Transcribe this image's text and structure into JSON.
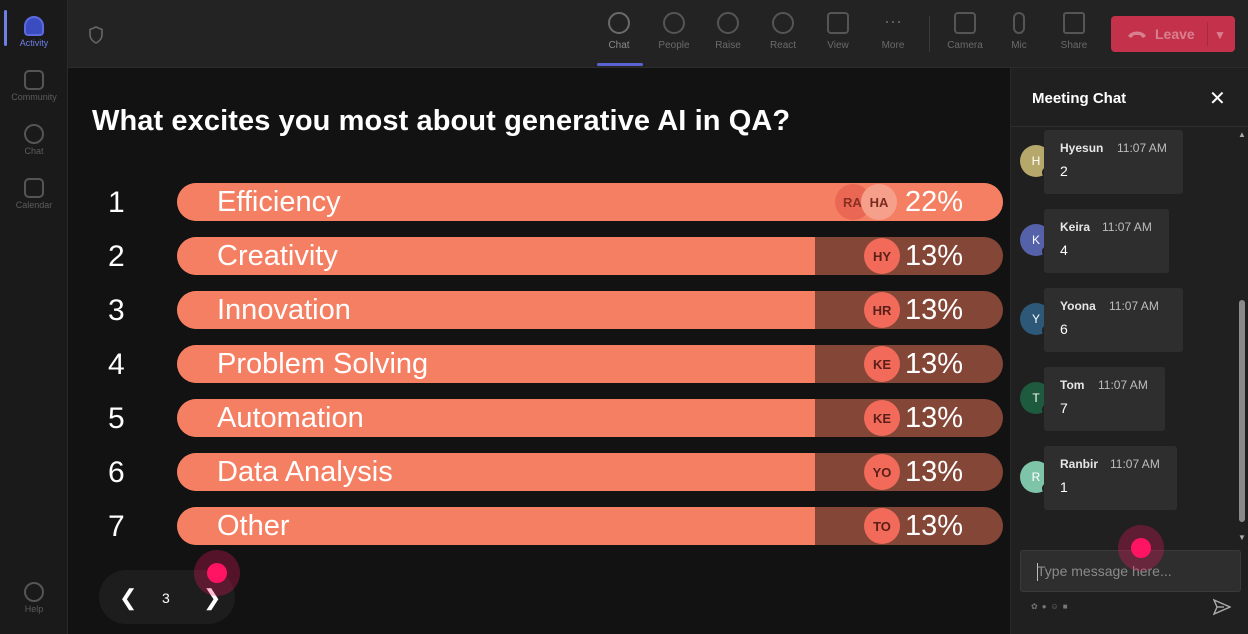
{
  "rail": {
    "items": [
      {
        "label": "Activity"
      },
      {
        "label": "Community"
      },
      {
        "label": "Chat"
      },
      {
        "label": "Calendar"
      }
    ],
    "help_label": "Help"
  },
  "toolbar": {
    "buttons": [
      {
        "label": "Chat",
        "icon": "chat-icon"
      },
      {
        "label": "People",
        "icon": "people-icon"
      },
      {
        "label": "Raise",
        "icon": "hand-icon"
      },
      {
        "label": "React",
        "icon": "smiley-icon"
      },
      {
        "label": "View",
        "icon": "grid-icon"
      },
      {
        "label": "More",
        "icon": "more-icon"
      },
      {
        "label": "Camera",
        "icon": "camera-off-icon"
      },
      {
        "label": "Mic",
        "icon": "mic-icon"
      },
      {
        "label": "Share",
        "icon": "share-icon"
      }
    ],
    "leave_label": "Leave",
    "leave_color": "#c4314b"
  },
  "poll": {
    "question": "What excites you most about generative AI in QA?",
    "fill_color": "#f57f63",
    "track_color": "#844636",
    "options": [
      {
        "num": "1",
        "label": "Efficiency",
        "pct": "22%",
        "value": 22,
        "avatars": [
          "RA",
          "HA"
        ]
      },
      {
        "num": "2",
        "label": "Creativity",
        "pct": "13%",
        "value": 13,
        "avatars": [
          "HY"
        ]
      },
      {
        "num": "3",
        "label": "Innovation",
        "pct": "13%",
        "value": 13,
        "avatars": [
          "HR"
        ]
      },
      {
        "num": "4",
        "label": "Problem Solving",
        "pct": "13%",
        "value": 13,
        "avatars": [
          "KE"
        ]
      },
      {
        "num": "5",
        "label": "Automation",
        "pct": "13%",
        "value": 13,
        "avatars": [
          "KE"
        ]
      },
      {
        "num": "6",
        "label": "Data Analysis",
        "pct": "13%",
        "value": 13,
        "avatars": [
          "YO"
        ]
      },
      {
        "num": "7",
        "label": "Other",
        "pct": "13%",
        "value": 13,
        "avatars": [
          "TO"
        ]
      }
    ]
  },
  "pager": {
    "page": "3",
    "prev_icon": "chevron-left-icon",
    "next_icon": "chevron-right-icon"
  },
  "chat": {
    "title": "Meeting Chat",
    "messages": [
      {
        "initial": "H",
        "name": "Hyesun",
        "time": "11:07 AM",
        "body": "2",
        "color": "#b5a86a"
      },
      {
        "initial": "K",
        "name": "Keira",
        "time": "11:07 AM",
        "body": "4",
        "color": "#5561a8"
      },
      {
        "initial": "Y",
        "name": "Yoona",
        "time": "11:07 AM",
        "body": "6",
        "color": "#2d5878"
      },
      {
        "initial": "T",
        "name": "Tom",
        "time": "11:07 AM",
        "body": "7",
        "color": "#1e5a3e"
      },
      {
        "initial": "R",
        "name": "Ranbir",
        "time": "11:07 AM",
        "body": "1",
        "color": "#7ec4a8"
      }
    ],
    "input_placeholder": "Type message here..."
  }
}
